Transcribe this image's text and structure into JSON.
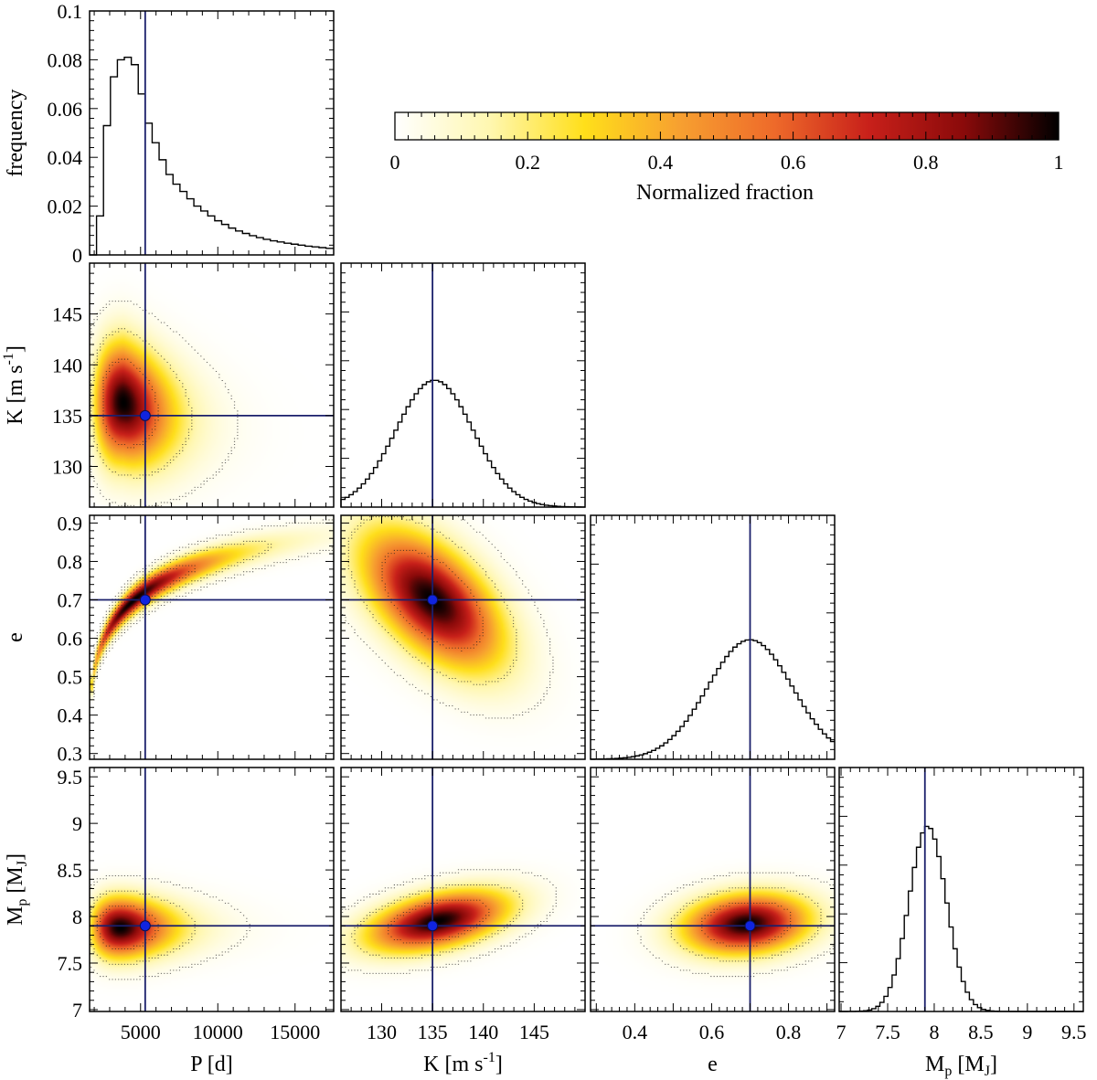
{
  "chart_data": {
    "type": "corner",
    "parameters": [
      {
        "name": "P",
        "axis_label": "P [d]",
        "range": [
          1700,
          17500
        ],
        "ticks": [
          5000,
          10000,
          15000
        ],
        "tick_labels": [
          "5000",
          "10000",
          "15000"
        ],
        "truth": 5300
      },
      {
        "name": "K",
        "axis_label_main": "K [m s",
        "axis_label_sup": "-1",
        "axis_label_tail": "]",
        "range": [
          126,
          150
        ],
        "ticks": [
          130,
          135,
          140,
          145
        ],
        "tick_labels": [
          "130",
          "135",
          "140",
          "145"
        ],
        "truth": 135
      },
      {
        "name": "e",
        "axis_label": "e",
        "range": [
          0.285,
          0.92
        ],
        "ticks": [
          0.3,
          0.4,
          0.5,
          0.6,
          0.7,
          0.8,
          0.9
        ],
        "tick_labels": [
          "0.3",
          "0.4",
          "0.5",
          "0.6",
          "0.7",
          "0.8",
          "0.9"
        ],
        "tick_labels_x": [
          "0.4",
          "0.6",
          "0.8"
        ],
        "truth": 0.7
      },
      {
        "name": "Mp",
        "axis_label_main": "M",
        "axis_label_sub": "p",
        "axis_label_mid": " [M",
        "axis_label_sub2": "J",
        "axis_label_tail": "]",
        "range": [
          6.98,
          9.6
        ],
        "ticks": [
          7,
          7.5,
          8,
          8.5,
          9,
          9.5
        ],
        "tick_labels": [
          "7",
          "7.5",
          "8",
          "8.5",
          "9",
          "9.5"
        ],
        "truth": 7.9
      }
    ],
    "histogram_ylabel": "frequency",
    "histogram_yticks": [
      0,
      0.02,
      0.04,
      0.06,
      0.08,
      0.1
    ],
    "histogram_ytick_labels": [
      "0",
      "0.02",
      "0.04",
      "0.06",
      "0.08",
      "0.1"
    ],
    "histogram_yrange": [
      0,
      0.1
    ],
    "histograms": [
      {
        "param": "P",
        "bins": [
          [
            1700,
            2150,
            0.0
          ],
          [
            2150,
            2600,
            0.016
          ],
          [
            2600,
            3050,
            0.053
          ],
          [
            3050,
            3500,
            0.073
          ],
          [
            3500,
            3950,
            0.08
          ],
          [
            3950,
            4400,
            0.081
          ],
          [
            4400,
            4850,
            0.078
          ],
          [
            4850,
            5300,
            0.066
          ],
          [
            5300,
            5750,
            0.054
          ],
          [
            5750,
            6200,
            0.046
          ],
          [
            6200,
            6650,
            0.039
          ],
          [
            6650,
            7100,
            0.033
          ],
          [
            7100,
            7550,
            0.029
          ],
          [
            7550,
            8000,
            0.026
          ],
          [
            8000,
            8450,
            0.023
          ],
          [
            8450,
            8900,
            0.02
          ],
          [
            8900,
            9350,
            0.018
          ],
          [
            9350,
            9800,
            0.016
          ],
          [
            9800,
            10250,
            0.014
          ],
          [
            10250,
            10700,
            0.0125
          ],
          [
            10700,
            11150,
            0.011
          ],
          [
            11150,
            11600,
            0.0098
          ],
          [
            11600,
            12050,
            0.0088
          ],
          [
            12050,
            12500,
            0.0079
          ],
          [
            12500,
            12950,
            0.0071
          ],
          [
            12950,
            13400,
            0.0064
          ],
          [
            13400,
            13850,
            0.0058
          ],
          [
            13850,
            14300,
            0.0053
          ],
          [
            14300,
            14750,
            0.0048
          ],
          [
            14750,
            15200,
            0.0044
          ],
          [
            15200,
            15650,
            0.004
          ],
          [
            15650,
            16100,
            0.0036
          ],
          [
            16100,
            16550,
            0.0033
          ],
          [
            16550,
            17000,
            0.003
          ],
          [
            17000,
            17500,
            0.0027
          ]
        ]
      },
      {
        "param": "K",
        "gauss": {
          "mu": 135.2,
          "sigma": 3.8,
          "peak": 0.052
        }
      },
      {
        "param": "e",
        "gauss": {
          "mu": 0.7,
          "sigma": 0.11,
          "peak": 0.049
        },
        "cutoff": 0.915
      },
      {
        "param": "Mp",
        "gauss": {
          "mu": 7.93,
          "sigma": 0.2,
          "peak": 0.076
        }
      }
    ],
    "joint_densities": [
      {
        "x": "P",
        "y": "K",
        "shape": "skewed-lognormal",
        "peak": {
          "x": 3800,
          "y": 136.5
        }
      },
      {
        "x": "P",
        "y": "e",
        "shape": "curved-ridge",
        "ridge_start": {
          "x": 1900,
          "y": 0.47
        },
        "ridge_end": {
          "x": 17000,
          "y": 0.87
        }
      },
      {
        "x": "P",
        "y": "Mp",
        "shape": "skewed-lognormal",
        "peak": {
          "x": 3600,
          "y": 7.88
        }
      },
      {
        "x": "K",
        "y": "e",
        "shape": "gaussian",
        "center": {
          "x": 135,
          "y": 0.7
        },
        "correlation": -0.55
      },
      {
        "x": "K",
        "y": "Mp",
        "shape": "gaussian",
        "center": {
          "x": 135.5,
          "y": 7.95
        },
        "correlation": 0.45
      },
      {
        "x": "e",
        "y": "Mp",
        "shape": "gaussian",
        "center": {
          "x": 0.69,
          "y": 7.92
        },
        "correlation": 0.15
      }
    ],
    "colorbar": {
      "label": "Normalized fraction",
      "range": [
        0,
        1
      ],
      "ticks": [
        0,
        0.2,
        0.4,
        0.6,
        0.8,
        1
      ],
      "tick_labels": [
        "0",
        "0.2",
        "0.4",
        "0.6",
        "0.8",
        "1"
      ],
      "colormap": [
        "#ffffff",
        "#fff7b0",
        "#ffdf1a",
        "#f7a030",
        "#ee6a2a",
        "#c8201a",
        "#8a0a0a",
        "#000000"
      ]
    },
    "truth_marker_color": "#1024e0",
    "truth_line_color": "#1a1f6b"
  }
}
